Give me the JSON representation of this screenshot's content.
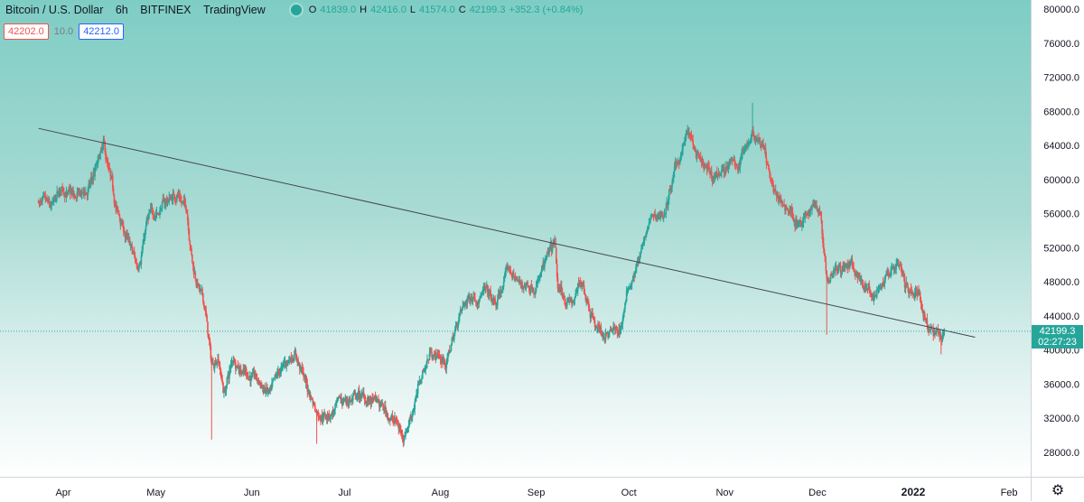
{
  "header": {
    "symbol": "Bitcoin / U.S. Dollar",
    "interval": "6h",
    "exchange": "BITFINEX",
    "source": "TradingView",
    "o_label": "O",
    "o": "41839.0",
    "h_label": "H",
    "h": "42416.0",
    "l_label": "L",
    "l": "41574.0",
    "c_label": "C",
    "c": "42199.3",
    "change": "+352.3 (+0.84%)"
  },
  "trade": {
    "sell": "42202.0",
    "spread": "10.0",
    "buy": "42212.0"
  },
  "last_price": {
    "value": "42199.3",
    "countdown": "02:27:23"
  },
  "icons": {
    "status": "status-dot-icon",
    "settings": "gear-icon"
  },
  "colors": {
    "up": "#26a69a",
    "down": "#ef5350",
    "trendline": "#434651",
    "sell": "#ef5350",
    "buy": "#2962ff"
  },
  "chart_data": {
    "type": "candlestick",
    "interval": "6h",
    "y_axis": {
      "ticks": [
        "80000.0",
        "76000.0",
        "72000.0",
        "68000.0",
        "64000.0",
        "60000.0",
        "56000.0",
        "52000.0",
        "48000.0",
        "44000.0",
        "40000.0",
        "36000.0",
        "32000.0",
        "28000.0"
      ],
      "ylim": [
        26000,
        81000
      ]
    },
    "x_axis": {
      "ticks": [
        "Apr",
        "May",
        "Jun",
        "Jul",
        "Aug",
        "Sep",
        "Oct",
        "Nov",
        "Dec",
        "2022",
        "Feb"
      ]
    },
    "grid": false,
    "price_path": [
      [
        "2021-03-24",
        57500
      ],
      [
        "2021-03-28",
        56000
      ],
      [
        "2021-04-01",
        58800
      ],
      [
        "2021-04-05",
        57500
      ],
      [
        "2021-04-09",
        58500
      ],
      [
        "2021-04-14",
        63500
      ],
      [
        "2021-04-18",
        56500
      ],
      [
        "2021-04-22",
        52500
      ],
      [
        "2021-04-25",
        49500
      ],
      [
        "2021-04-28",
        55000
      ],
      [
        "2021-05-03",
        57000
      ],
      [
        "2021-05-08",
        58500
      ],
      [
        "2021-05-11",
        56500
      ],
      [
        "2021-05-13",
        50000
      ],
      [
        "2021-05-17",
        44500
      ],
      [
        "2021-05-19",
        38000
      ],
      [
        "2021-05-21",
        39500
      ],
      [
        "2021-05-23",
        35000
      ],
      [
        "2021-05-26",
        39000
      ],
      [
        "2021-06-01",
        37000
      ],
      [
        "2021-06-07",
        34500
      ],
      [
        "2021-06-10",
        37000
      ],
      [
        "2021-06-15",
        40000
      ],
      [
        "2021-06-19",
        35500
      ],
      [
        "2021-06-22",
        33000
      ],
      [
        "2021-06-26",
        32500
      ],
      [
        "2021-07-01",
        34000
      ],
      [
        "2021-07-06",
        34500
      ],
      [
        "2021-07-12",
        33500
      ],
      [
        "2021-07-17",
        31800
      ],
      [
        "2021-07-20",
        30000
      ],
      [
        "2021-07-22",
        32000
      ],
      [
        "2021-07-26",
        37000
      ],
      [
        "2021-07-29",
        40000
      ],
      [
        "2021-08-03",
        38500
      ],
      [
        "2021-08-07",
        44000
      ],
      [
        "2021-08-11",
        46500
      ],
      [
        "2021-08-15",
        47000
      ],
      [
        "2021-08-19",
        45000
      ],
      [
        "2021-08-23",
        49500
      ],
      [
        "2021-08-27",
        47500
      ],
      [
        "2021-09-01",
        48000
      ],
      [
        "2021-09-07",
        52000
      ],
      [
        "2021-09-08",
        46500
      ],
      [
        "2021-09-13",
        45500
      ],
      [
        "2021-09-16",
        48000
      ],
      [
        "2021-09-20",
        43500
      ],
      [
        "2021-09-22",
        42000
      ],
      [
        "2021-09-28",
        42000
      ],
      [
        "2021-10-01",
        47500
      ],
      [
        "2021-10-05",
        51500
      ],
      [
        "2021-10-08",
        55000
      ],
      [
        "2021-10-13",
        56500
      ],
      [
        "2021-10-16",
        61000
      ],
      [
        "2021-10-20",
        65500
      ],
      [
        "2021-10-24",
        61500
      ],
      [
        "2021-10-28",
        60000
      ],
      [
        "2021-11-01",
        61500
      ],
      [
        "2021-11-05",
        61500
      ],
      [
        "2021-11-10",
        66000
      ],
      [
        "2021-11-13",
        64500
      ],
      [
        "2021-11-16",
        60000
      ],
      [
        "2021-11-19",
        57000
      ],
      [
        "2021-11-22",
        56500
      ],
      [
        "2021-11-26",
        54500
      ],
      [
        "2021-11-30",
        57500
      ],
      [
        "2021-12-02",
        56500
      ],
      [
        "2021-12-04",
        49000
      ],
      [
        "2021-12-07",
        50500
      ],
      [
        "2021-12-12",
        49500
      ],
      [
        "2021-12-16",
        47500
      ],
      [
        "2021-12-20",
        46500
      ],
      [
        "2021-12-23",
        48500
      ],
      [
        "2021-12-27",
        50500
      ],
      [
        "2021-12-30",
        47000
      ],
      [
        "2022-01-03",
        46500
      ],
      [
        "2022-01-06",
        43000
      ],
      [
        "2022-01-08",
        41800
      ],
      [
        "2022-01-10",
        41800
      ],
      [
        "2022-01-11",
        42199.3
      ]
    ],
    "notable_wicks": [
      {
        "date": "2021-05-19",
        "low": 29500
      },
      {
        "date": "2021-06-22",
        "low": 29000
      },
      {
        "date": "2021-07-20",
        "low": 29300
      },
      {
        "date": "2021-04-14",
        "high": 65000
      },
      {
        "date": "2021-11-10",
        "high": 69000
      },
      {
        "date": "2021-12-04",
        "low": 41800
      },
      {
        "date": "2022-01-10",
        "low": 39500
      }
    ],
    "trendline": {
      "from": [
        "2021-03-24",
        66000
      ],
      "to": [
        "2022-01-21",
        41500
      ]
    },
    "last_price_line": 42199.3
  }
}
